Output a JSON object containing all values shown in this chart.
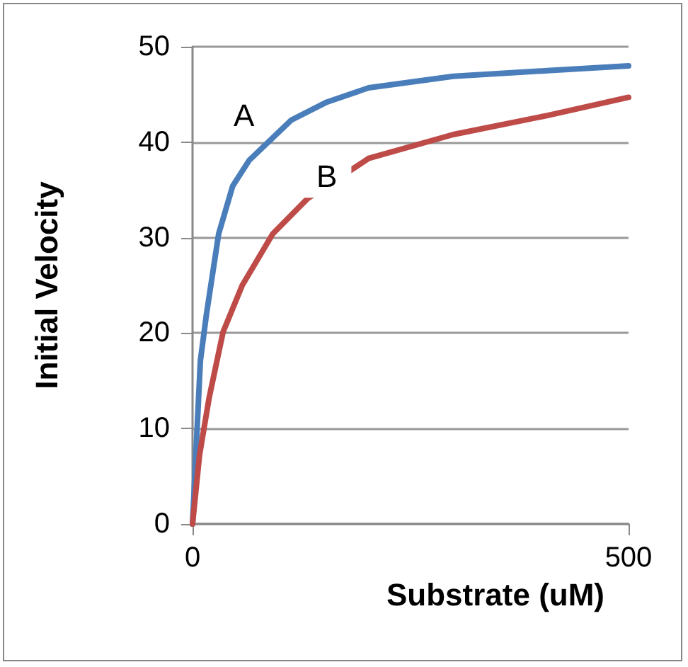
{
  "chart_data": {
    "type": "line",
    "xlabel": "Substrate (uM)",
    "ylabel": "Initial Velocity",
    "series": [
      {
        "color": "#4a7ebb",
        "x": [
          0,
          9,
          16,
          30,
          46,
          65,
          113,
          154,
          202,
          299,
          407,
          500
        ],
        "values": [
          0,
          17.1,
          22,
          30.4,
          35.4,
          38.1,
          42.3,
          44.2,
          45.7,
          46.9,
          47.5,
          48.0
        ]
      },
      {
        "color": "#be4b48",
        "x": [
          0,
          8,
          19,
          35,
          57,
          92,
          132,
          202,
          299,
          407,
          500
        ],
        "values": [
          0,
          7.2,
          13.2,
          20.1,
          25.0,
          30.4,
          34.1,
          38.3,
          40.8,
          42.8,
          44.7
        ]
      }
    ],
    "annotations": [
      {
        "text": "A",
        "x": 59,
        "y": 42.8
      },
      {
        "text": "B",
        "x": 154,
        "y": 36.4
      }
    ],
    "xlim": [
      0,
      500
    ],
    "xticks": [
      0,
      500
    ],
    "ylim": [
      0,
      50
    ],
    "yticks": [
      0,
      10,
      20,
      30,
      40,
      50
    ],
    "grid": "y",
    "marker": "none",
    "line_style": "solid"
  }
}
